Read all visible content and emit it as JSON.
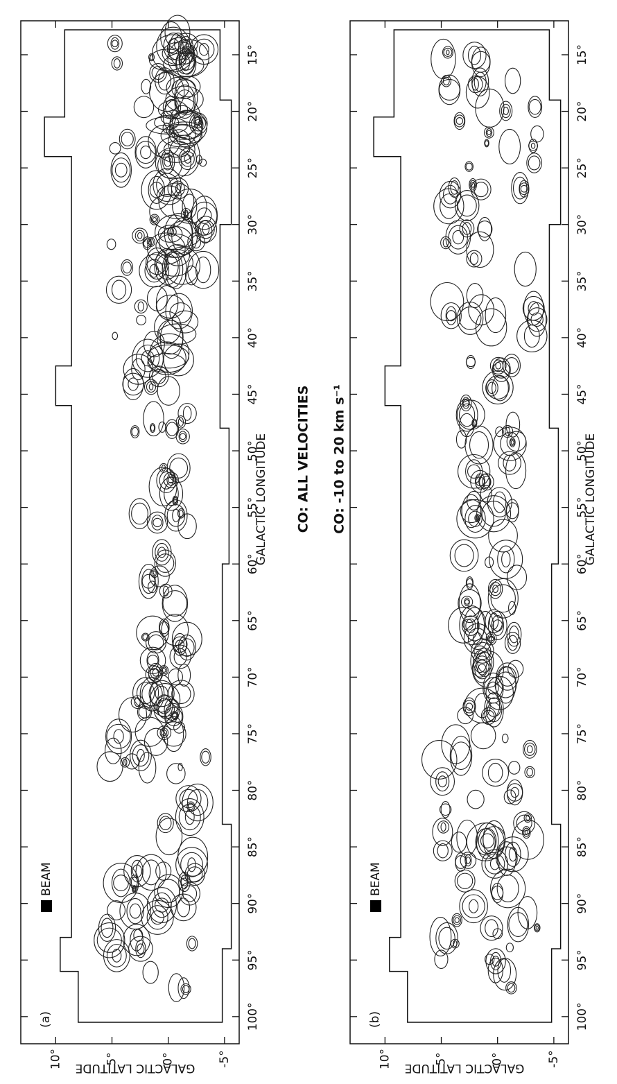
{
  "chart_data": [
    {
      "type": "contour",
      "panel_label": "(a)",
      "title": "CO: ALL VELOCITIES",
      "x_label": "GALACTIC LONGITUDE",
      "y_label": "GALACTIC LATITUDE",
      "legend": "BEAM",
      "xlim": [
        12,
        102.4
      ],
      "ylim": [
        -6.3,
        13.1
      ],
      "xticks": [
        {
          "value": 15,
          "label": "15°"
        },
        {
          "value": 20,
          "label": "20°"
        },
        {
          "value": 25,
          "label": "25°"
        },
        {
          "value": 30,
          "label": "30°"
        },
        {
          "value": 35,
          "label": "35°"
        },
        {
          "value": 40,
          "label": "40°"
        },
        {
          "value": 45,
          "label": "45°"
        },
        {
          "value": 50,
          "label": "50°"
        },
        {
          "value": 55,
          "label": "55°"
        },
        {
          "value": 60,
          "label": "60°"
        },
        {
          "value": 65,
          "label": "65°"
        },
        {
          "value": 70,
          "label": "70°"
        },
        {
          "value": 75,
          "label": "75°"
        },
        {
          "value": 80,
          "label": "80°"
        },
        {
          "value": 85,
          "label": "85°"
        },
        {
          "value": 90,
          "label": "90°"
        },
        {
          "value": 95,
          "label": "95°"
        },
        {
          "value": 100,
          "label": "100°"
        }
      ],
      "yticks": [
        {
          "value": 10,
          "label": "10°"
        },
        {
          "value": 5,
          "label": "5°"
        },
        {
          "value": 0,
          "label": "0°"
        },
        {
          "value": -5,
          "label": "-5°"
        }
      ]
    },
    {
      "type": "contour",
      "panel_label": "(b)",
      "title": "CO: -10 to 20 km s⁻¹",
      "x_label": "GALACTIC LONGITUDE",
      "y_label": "GALACTIC LATITUDE",
      "legend": "BEAM",
      "xlim": [
        12,
        102.4
      ],
      "ylim": [
        -6.3,
        13.1
      ],
      "xticks": [
        {
          "value": 15,
          "label": "15°"
        },
        {
          "value": 20,
          "label": "20°"
        },
        {
          "value": 25,
          "label": "25°"
        },
        {
          "value": 30,
          "label": "30°"
        },
        {
          "value": 35,
          "label": "35°"
        },
        {
          "value": 40,
          "label": "40°"
        },
        {
          "value": 45,
          "label": "45°"
        },
        {
          "value": 50,
          "label": "50°"
        },
        {
          "value": 55,
          "label": "55°"
        },
        {
          "value": 60,
          "label": "60°"
        },
        {
          "value": 65,
          "label": "65°"
        },
        {
          "value": 70,
          "label": "70°"
        },
        {
          "value": 75,
          "label": "75°"
        },
        {
          "value": 80,
          "label": "80°"
        },
        {
          "value": 85,
          "label": "85°"
        },
        {
          "value": 90,
          "label": "90°"
        },
        {
          "value": 95,
          "label": "95°"
        },
        {
          "value": 100,
          "label": "100°"
        }
      ],
      "yticks": [
        {
          "value": 10,
          "label": "10°"
        },
        {
          "value": 5,
          "label": "5°"
        },
        {
          "value": 0,
          "label": "0°"
        },
        {
          "value": -5,
          "label": "-5°"
        }
      ]
    }
  ]
}
